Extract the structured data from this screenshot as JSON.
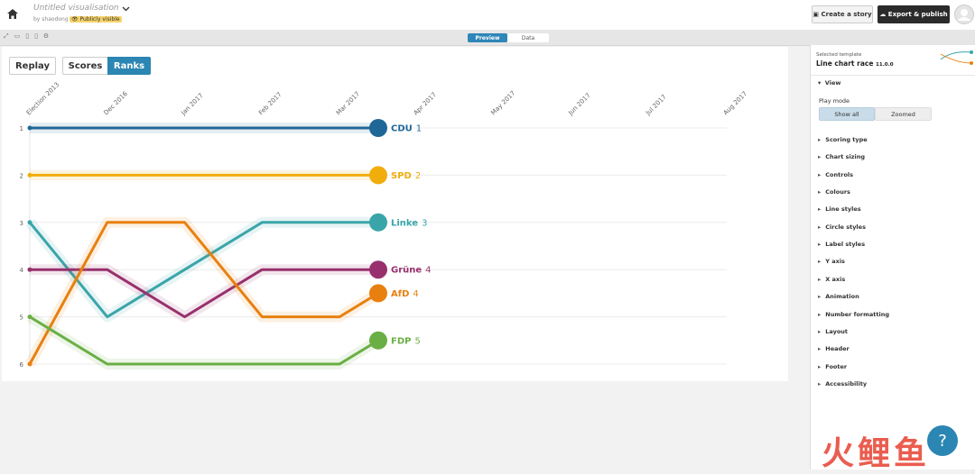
{
  "header": {
    "title": "Untitled visualisation",
    "author": "by shaodong",
    "visibility": "Publicly visible",
    "buttons": [
      "Create a story",
      "Export & publish"
    ]
  },
  "tabs": [
    "Preview",
    "Data"
  ],
  "chart_controls": [
    "Replay",
    "Scores",
    "Ranks"
  ],
  "chart_data": {
    "type": "line",
    "x": [
      0,
      1,
      2,
      3,
      4,
      4.5
    ],
    "xlim": [
      0,
      9
    ],
    "xticks": [
      {
        "value": 0,
        "label": "Election 2013"
      },
      {
        "value": 1,
        "label": "Dec 2016"
      },
      {
        "value": 2,
        "label": "Jan 2017"
      },
      {
        "value": 3,
        "label": "Feb 2017"
      },
      {
        "value": 4,
        "label": "Mar 2017"
      },
      {
        "value": 5,
        "label": "Apr 2017"
      },
      {
        "value": 6,
        "label": "May 2017"
      },
      {
        "value": 7,
        "label": "Jun 2017"
      },
      {
        "value": 8,
        "label": "Jul 2017"
      },
      {
        "value": 9,
        "label": "Aug 2017"
      }
    ],
    "ylim": [
      1,
      6
    ],
    "yticks": [
      1,
      2,
      3,
      4,
      5,
      6
    ],
    "y_inverted": true,
    "grid": true,
    "series": [
      {
        "name": "CDU",
        "color": "#1f6797",
        "values": [
          1,
          1,
          1,
          1,
          1,
          1
        ],
        "current_rank": 1
      },
      {
        "name": "SPD",
        "color": "#f0ad0c",
        "values": [
          2,
          2,
          2,
          2,
          2,
          2
        ],
        "current_rank": 2
      },
      {
        "name": "Linke",
        "color": "#3aa5a9",
        "values": [
          3,
          5,
          4,
          3,
          3,
          3
        ],
        "current_rank": 3
      },
      {
        "name": "Grüne",
        "color": "#98306d",
        "values": [
          4,
          4,
          5,
          4,
          4,
          4
        ],
        "current_rank": 4
      },
      {
        "name": "AfD",
        "color": "#e8800f",
        "values": [
          6,
          3,
          3,
          5,
          5,
          4.5
        ],
        "current_rank": 4
      },
      {
        "name": "FDP",
        "color": "#6aaf45",
        "values": [
          5,
          6,
          6,
          6,
          6,
          5.5
        ],
        "current_rank": 5
      }
    ]
  },
  "sidebar": {
    "template_caption": "Selected template",
    "template_name": "Line chart race",
    "template_version": "11.0.0",
    "view": {
      "title": "View",
      "play_mode_label": "Play mode",
      "options": [
        "Show all",
        "Zoomed"
      ]
    },
    "sections": [
      "Scoring type",
      "Chart sizing",
      "Controls",
      "Colours",
      "Line styles",
      "Circle styles",
      "Label styles",
      "Y axis",
      "X axis",
      "Animation",
      "Number formatting",
      "Layout",
      "Header",
      "Footer",
      "Accessibility"
    ]
  },
  "help": "?",
  "watermark": "火鲤鱼"
}
